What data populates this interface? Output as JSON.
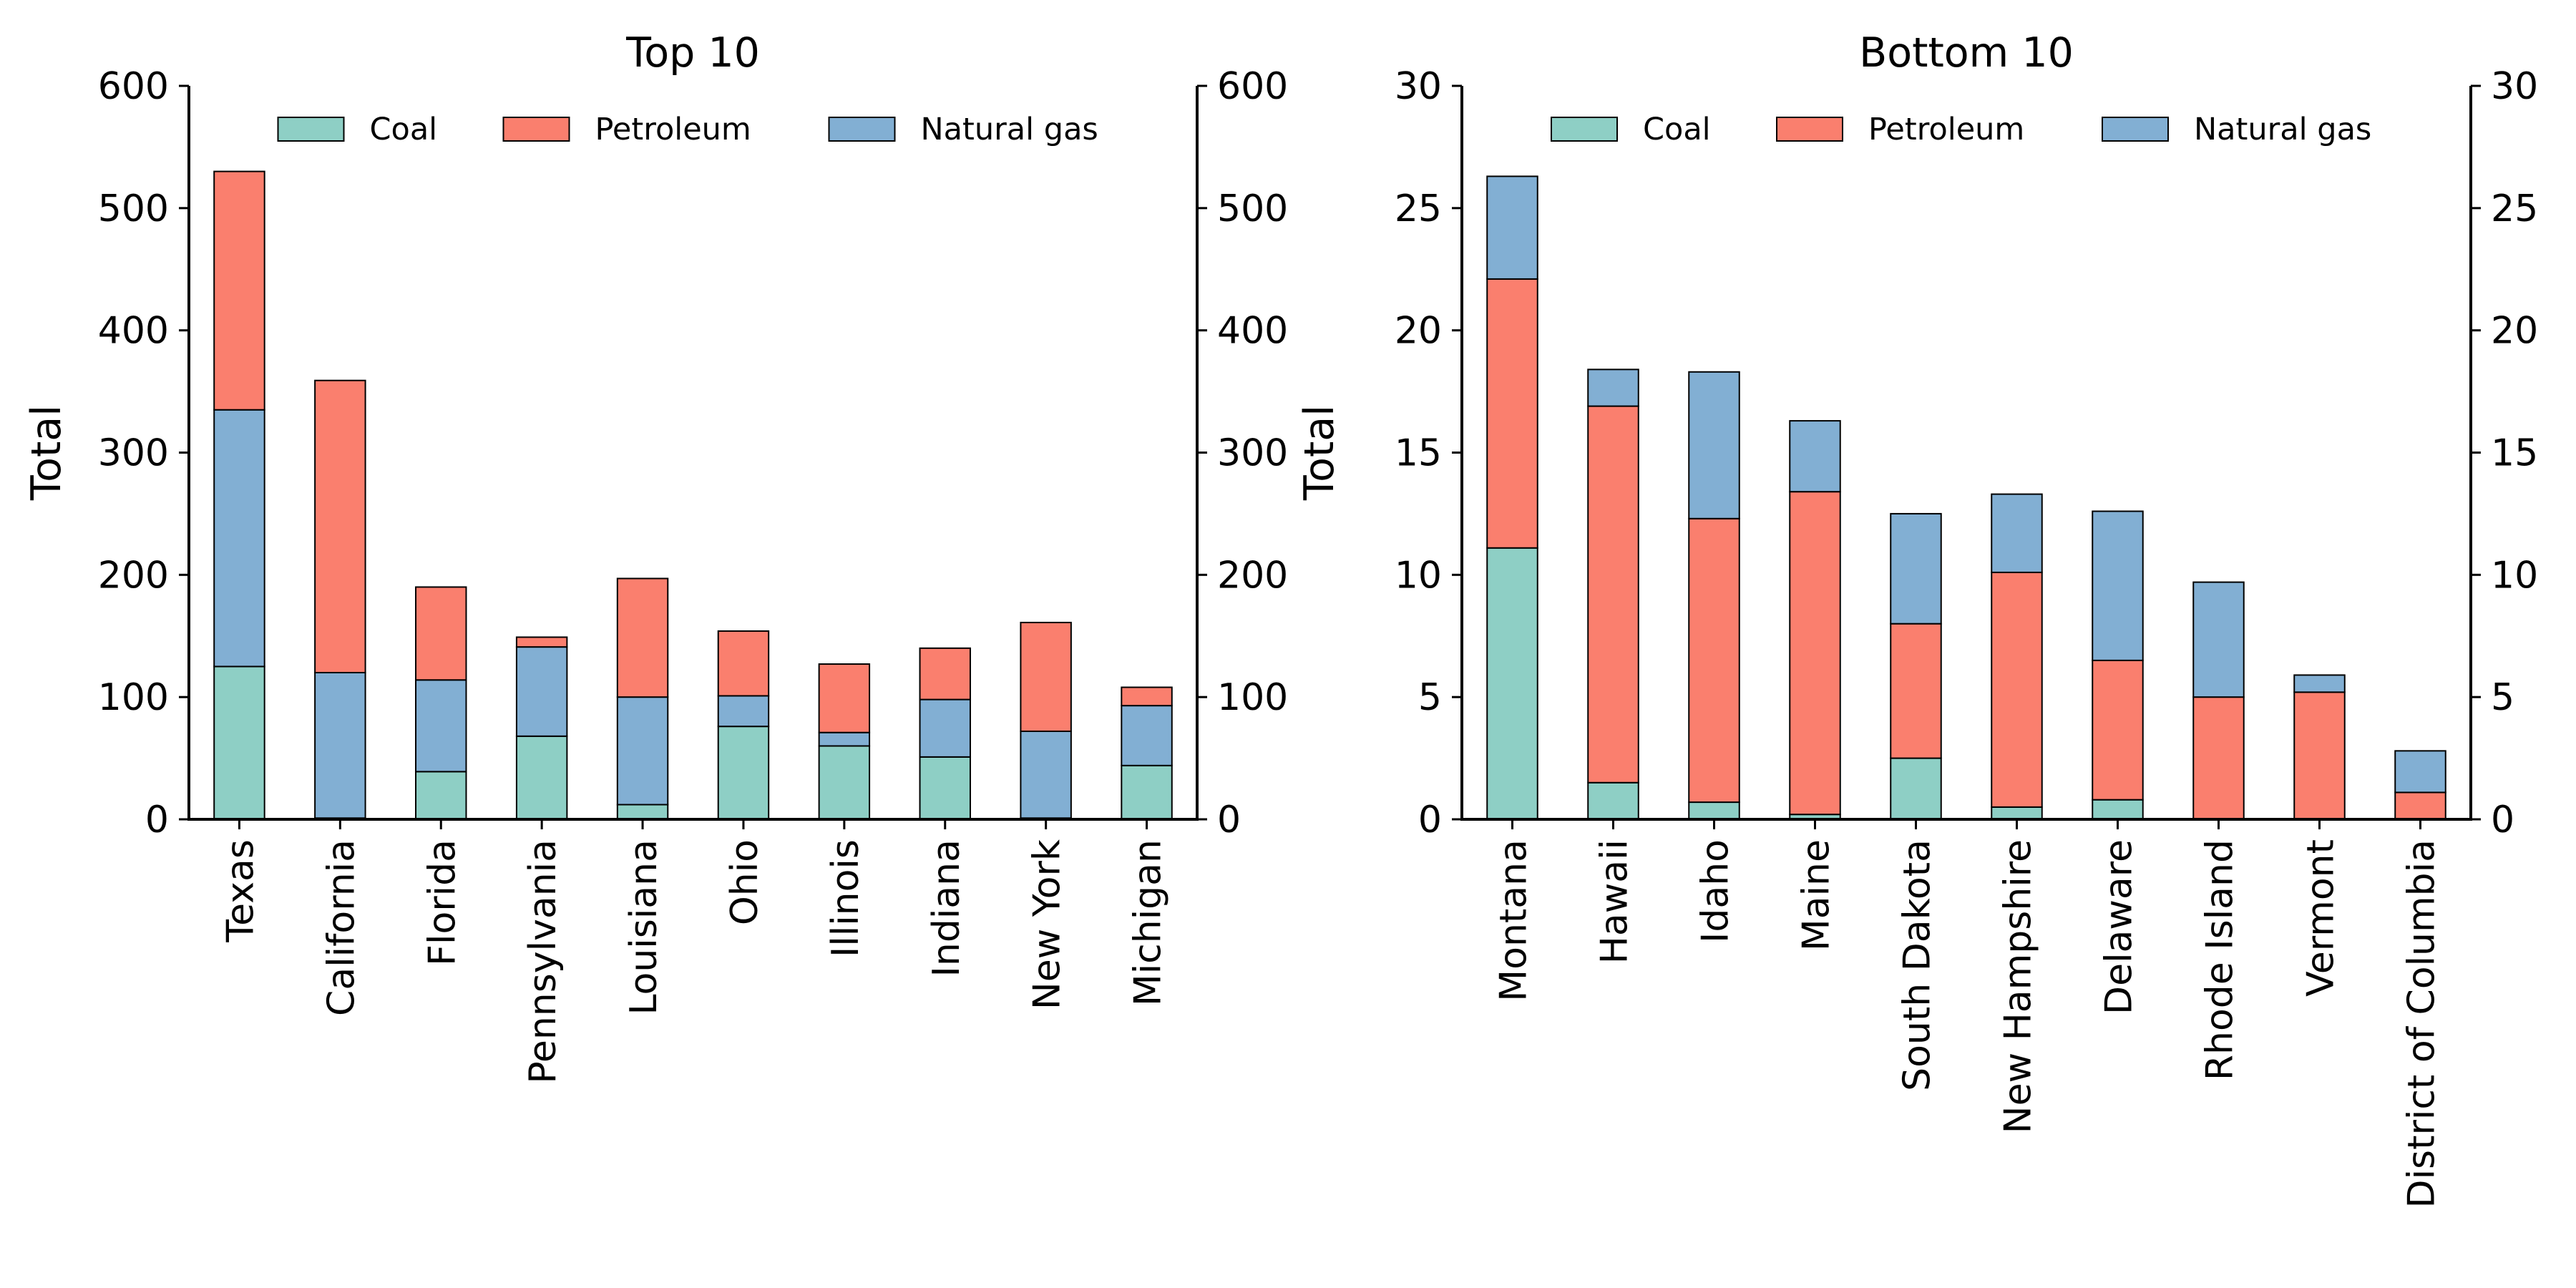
{
  "colors": {
    "coal": "#8ecfc5",
    "petroleum": "#fa7f6e",
    "natural_gas": "#82afd3",
    "edge": "#000000"
  },
  "legend_placement": "upper-center",
  "chart_data": [
    {
      "type": "bar",
      "stacked": true,
      "title": "Top 10",
      "ylabel": "Total",
      "xlabel": "",
      "ylim": [
        0,
        600
      ],
      "yticks": [
        0,
        100,
        200,
        300,
        400,
        500,
        600
      ],
      "secondary_y_axis": true,
      "grid": false,
      "legend_position": "upper-center",
      "categories": [
        "Texas",
        "California",
        "Florida",
        "Pennsylvania",
        "Louisiana",
        "Ohio",
        "Illinois",
        "Indiana",
        "New York",
        "Michigan"
      ],
      "series": [
        {
          "name": "Coal",
          "key": "coal",
          "values": [
            125,
            1,
            39,
            68,
            12,
            76,
            60,
            51,
            1,
            44
          ]
        },
        {
          "name": "Petroleum",
          "key": "petroleum",
          "values": [
            195,
            239,
            76,
            8,
            97,
            53,
            56,
            42,
            89,
            15
          ]
        },
        {
          "name": "Natural gas",
          "key": "natural_gas",
          "values": [
            210,
            119,
            75,
            73,
            88,
            25,
            11,
            47,
            71,
            49
          ]
        }
      ],
      "draw_order": [
        "coal",
        "natural_gas",
        "petroleum"
      ]
    },
    {
      "type": "bar",
      "stacked": true,
      "title": "Bottom 10",
      "ylabel": "Total",
      "xlabel": "",
      "ylim": [
        0,
        30
      ],
      "yticks": [
        0,
        5,
        10,
        15,
        20,
        25,
        30
      ],
      "secondary_y_axis": true,
      "grid": false,
      "legend_position": "upper-center",
      "categories": [
        "Montana",
        "Hawaii",
        "Idaho",
        "Maine",
        "South Dakota",
        "New Hampshire",
        "Delaware",
        "Rhode Island",
        "Vermont",
        "District of Columbia"
      ],
      "series": [
        {
          "name": "Coal",
          "key": "coal",
          "values": [
            11.1,
            1.5,
            0.7,
            0.2,
            2.5,
            0.5,
            0.8,
            0,
            0,
            0
          ]
        },
        {
          "name": "Petroleum",
          "key": "petroleum",
          "values": [
            11.0,
            15.4,
            11.6,
            13.2,
            5.5,
            9.6,
            5.7,
            5.0,
            5.2,
            1.1
          ]
        },
        {
          "name": "Natural gas",
          "key": "natural_gas",
          "values": [
            4.2,
            1.5,
            6.0,
            2.9,
            4.5,
            3.2,
            6.1,
            4.7,
            0.7,
            1.7
          ]
        }
      ],
      "draw_order": [
        "coal",
        "petroleum",
        "natural_gas"
      ]
    }
  ]
}
